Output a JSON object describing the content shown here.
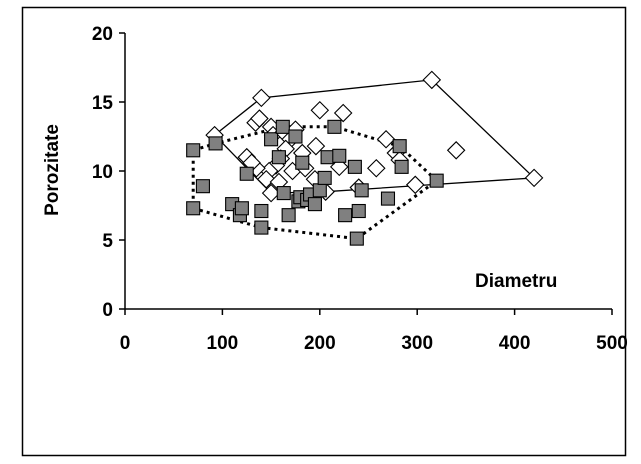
{
  "chart_data": {
    "type": "scatter",
    "xlabel": "Diametru",
    "ylabel": "Porozitate",
    "xlim": [
      0,
      500
    ],
    "ylim": [
      0,
      20
    ],
    "x_ticks": [
      "0",
      "100",
      "200",
      "300",
      "400",
      "500"
    ],
    "y_ticks": [
      "0",
      "5",
      "10",
      "15",
      "20"
    ],
    "grid": false,
    "legend": "none",
    "series": [
      {
        "marker": "diamond-open",
        "hull": "solid",
        "points": [
          [
            92,
            12.6
          ],
          [
            140,
            15.3
          ],
          [
            134,
            13.5
          ],
          [
            138,
            13.8
          ],
          [
            150,
            13.2
          ],
          [
            152,
            12.6
          ],
          [
            163,
            12.8
          ],
          [
            170,
            12.3
          ],
          [
            175,
            13.0
          ],
          [
            182,
            11.3
          ],
          [
            165,
            11.6
          ],
          [
            160,
            10.9
          ],
          [
            155,
            10.4
          ],
          [
            148,
            10.0
          ],
          [
            135,
            10.2
          ],
          [
            125,
            11.0
          ],
          [
            130,
            10.6
          ],
          [
            145,
            9.4
          ],
          [
            150,
            8.4
          ],
          [
            158,
            9.2
          ],
          [
            172,
            10.0
          ],
          [
            185,
            10.2
          ],
          [
            196,
            11.8
          ],
          [
            200,
            14.4
          ],
          [
            224,
            14.2
          ],
          [
            220,
            10.3
          ],
          [
            195,
            9.4
          ],
          [
            206,
            8.5
          ],
          [
            240,
            8.8
          ],
          [
            258,
            10.2
          ],
          [
            268,
            12.3
          ],
          [
            278,
            11.3
          ],
          [
            282,
            10.8
          ],
          [
            298,
            9.0
          ],
          [
            315,
            16.6
          ],
          [
            340,
            11.5
          ],
          [
            420,
            9.5
          ]
        ]
      },
      {
        "marker": "square-filled",
        "hull": "dotted",
        "points": [
          [
            70,
            11.5
          ],
          [
            80,
            8.9
          ],
          [
            93,
            12.0
          ],
          [
            70,
            7.3
          ],
          [
            110,
            7.6
          ],
          [
            118,
            6.8
          ],
          [
            120,
            7.3
          ],
          [
            125,
            9.8
          ],
          [
            140,
            7.1
          ],
          [
            140,
            5.9
          ],
          [
            150,
            12.3
          ],
          [
            158,
            11.0
          ],
          [
            162,
            13.2
          ],
          [
            163,
            8.4
          ],
          [
            168,
            6.8
          ],
          [
            175,
            12.5
          ],
          [
            178,
            7.8
          ],
          [
            180,
            8.1
          ],
          [
            182,
            10.6
          ],
          [
            187,
            7.9
          ],
          [
            190,
            8.3
          ],
          [
            195,
            7.6
          ],
          [
            200,
            8.6
          ],
          [
            205,
            9.5
          ],
          [
            208,
            11.0
          ],
          [
            215,
            13.2
          ],
          [
            220,
            11.1
          ],
          [
            226,
            6.8
          ],
          [
            236,
            10.3
          ],
          [
            238,
            5.1
          ],
          [
            240,
            7.1
          ],
          [
            243,
            8.6
          ],
          [
            270,
            8.0
          ],
          [
            282,
            11.8
          ],
          [
            284,
            10.3
          ],
          [
            320,
            9.3
          ]
        ]
      }
    ]
  }
}
